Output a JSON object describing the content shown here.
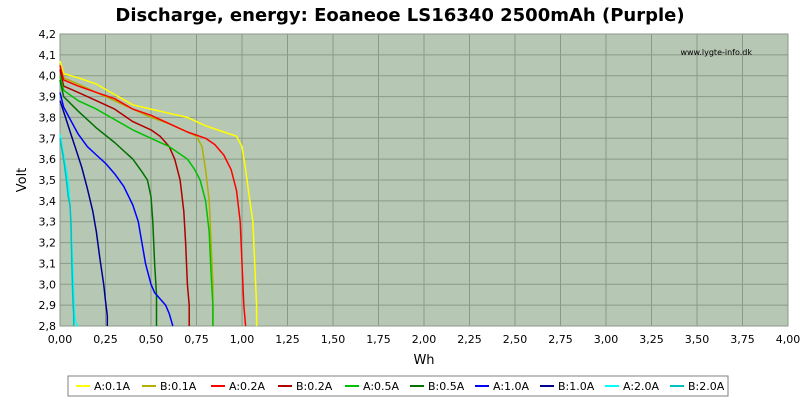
{
  "chart_data": {
    "type": "line",
    "title": "Discharge, energy: Eoaneoe LS16340 2500mAh (Purple)",
    "xlabel": "Wh",
    "ylabel": "Volt",
    "watermark": "www.lygte-info.dk",
    "xlim": [
      0,
      4.0
    ],
    "ylim": [
      2.8,
      4.2
    ],
    "xticks": [
      0.0,
      0.25,
      0.5,
      0.75,
      1.0,
      1.25,
      1.5,
      1.75,
      2.0,
      2.25,
      2.5,
      2.75,
      3.0,
      3.25,
      3.5,
      3.75,
      4.0
    ],
    "xtick_labels": [
      "0,00",
      "0,25",
      "0,50",
      "0,75",
      "1,00",
      "1,25",
      "1,50",
      "1,75",
      "2,00",
      "2,25",
      "2,50",
      "2,75",
      "3,00",
      "3,25",
      "3,50",
      "3,75",
      "4,00"
    ],
    "yticks": [
      2.8,
      2.9,
      3.0,
      3.1,
      3.2,
      3.3,
      3.4,
      3.5,
      3.6,
      3.7,
      3.8,
      3.9,
      4.0,
      4.1,
      4.2
    ],
    "ytick_labels": [
      "2,8",
      "2,9",
      "3,0",
      "3,1",
      "3,2",
      "3,3",
      "3,4",
      "3,5",
      "3,6",
      "3,7",
      "3,8",
      "3,9",
      "4,0",
      "4,1",
      "4,2"
    ],
    "grid": true,
    "legend_position": "bottom",
    "plot_background": "#b6c8b3",
    "series": [
      {
        "name": "A:0.1A",
        "color": "#ffff00",
        "x": [
          0,
          0.02,
          0.1,
          0.2,
          0.3,
          0.4,
          0.5,
          0.6,
          0.7,
          0.8,
          0.9,
          0.97,
          1.0,
          1.02,
          1.04,
          1.06,
          1.07,
          1.08,
          1.08
        ],
        "y": [
          4.07,
          4.01,
          3.99,
          3.96,
          3.91,
          3.86,
          3.84,
          3.82,
          3.8,
          3.76,
          3.73,
          3.71,
          3.66,
          3.55,
          3.42,
          3.3,
          3.1,
          2.9,
          2.8
        ]
      },
      {
        "name": "B:0.1A",
        "color": "#b0b000",
        "x": [
          0,
          0.02,
          0.1,
          0.2,
          0.3,
          0.4,
          0.5,
          0.6,
          0.65,
          0.7,
          0.75,
          0.78,
          0.8,
          0.82,
          0.83,
          0.84,
          0.84
        ],
        "y": [
          4.05,
          3.99,
          3.96,
          3.92,
          3.88,
          3.84,
          3.8,
          3.77,
          3.75,
          3.73,
          3.71,
          3.66,
          3.55,
          3.4,
          3.2,
          3.0,
          2.8
        ]
      },
      {
        "name": "A:0.2A",
        "color": "#ff0000",
        "x": [
          0,
          0.02,
          0.1,
          0.2,
          0.3,
          0.4,
          0.5,
          0.6,
          0.7,
          0.8,
          0.85,
          0.9,
          0.94,
          0.97,
          0.99,
          1.0,
          1.01,
          1.02
        ],
        "y": [
          4.05,
          3.98,
          3.95,
          3.92,
          3.89,
          3.84,
          3.81,
          3.77,
          3.73,
          3.7,
          3.67,
          3.62,
          3.55,
          3.45,
          3.3,
          3.1,
          2.9,
          2.8
        ]
      },
      {
        "name": "B:0.2A",
        "color": "#b00000",
        "x": [
          0,
          0.02,
          0.1,
          0.2,
          0.3,
          0.4,
          0.5,
          0.55,
          0.6,
          0.63,
          0.66,
          0.68,
          0.69,
          0.7,
          0.71,
          0.71
        ],
        "y": [
          4.03,
          3.95,
          3.92,
          3.88,
          3.84,
          3.78,
          3.74,
          3.71,
          3.66,
          3.6,
          3.5,
          3.35,
          3.2,
          3.0,
          2.9,
          2.8
        ]
      },
      {
        "name": "A:0.5A",
        "color": "#00c000",
        "x": [
          0,
          0.02,
          0.1,
          0.2,
          0.3,
          0.4,
          0.5,
          0.6,
          0.65,
          0.7,
          0.74,
          0.77,
          0.8,
          0.82,
          0.83,
          0.84,
          0.84
        ],
        "y": [
          4.0,
          3.93,
          3.88,
          3.84,
          3.79,
          3.74,
          3.7,
          3.66,
          3.63,
          3.6,
          3.55,
          3.5,
          3.4,
          3.25,
          3.05,
          2.9,
          2.8
        ]
      },
      {
        "name": "B:0.5A",
        "color": "#007000",
        "x": [
          0,
          0.02,
          0.1,
          0.2,
          0.3,
          0.4,
          0.45,
          0.48,
          0.5,
          0.51,
          0.52,
          0.53,
          0.53
        ],
        "y": [
          3.98,
          3.9,
          3.83,
          3.75,
          3.68,
          3.6,
          3.54,
          3.5,
          3.42,
          3.3,
          3.1,
          2.95,
          2.8
        ]
      },
      {
        "name": "A:1.0A",
        "color": "#0000ff",
        "x": [
          0,
          0.02,
          0.05,
          0.1,
          0.15,
          0.2,
          0.25,
          0.3,
          0.35,
          0.4,
          0.43,
          0.45,
          0.47,
          0.5,
          0.52,
          0.55,
          0.58,
          0.6,
          0.61,
          0.62
        ],
        "y": [
          3.92,
          3.85,
          3.8,
          3.72,
          3.66,
          3.62,
          3.58,
          3.53,
          3.47,
          3.38,
          3.3,
          3.2,
          3.1,
          3.0,
          2.96,
          2.93,
          2.9,
          2.86,
          2.83,
          2.8
        ]
      },
      {
        "name": "B:1.0A",
        "color": "#000090",
        "x": [
          0,
          0.03,
          0.06,
          0.09,
          0.12,
          0.15,
          0.18,
          0.2,
          0.22,
          0.24,
          0.25,
          0.26,
          0.26
        ],
        "y": [
          3.88,
          3.8,
          3.72,
          3.64,
          3.56,
          3.46,
          3.35,
          3.25,
          3.12,
          3.0,
          2.92,
          2.85,
          2.8
        ]
      },
      {
        "name": "A:2.0A",
        "color": "#00ffff",
        "x": [
          0,
          0.02,
          0.04,
          0.05,
          0.06,
          0.065,
          0.07,
          0.075,
          0.08,
          0.085,
          0.09,
          0.095,
          0.1,
          0.1
        ],
        "y": [
          3.72,
          3.62,
          3.52,
          3.45,
          3.3,
          3.2,
          3.1,
          2.95,
          2.85,
          2.82,
          2.81,
          2.8,
          2.8,
          2.8
        ]
      },
      {
        "name": "B:2.0A",
        "color": "#00c0c0",
        "x": [
          0,
          0.02,
          0.035,
          0.045,
          0.055,
          0.06,
          0.065,
          0.07,
          0.075,
          0.075
        ],
        "y": [
          3.7,
          3.6,
          3.5,
          3.42,
          3.38,
          3.3,
          3.1,
          2.95,
          2.85,
          2.8
        ]
      }
    ]
  }
}
